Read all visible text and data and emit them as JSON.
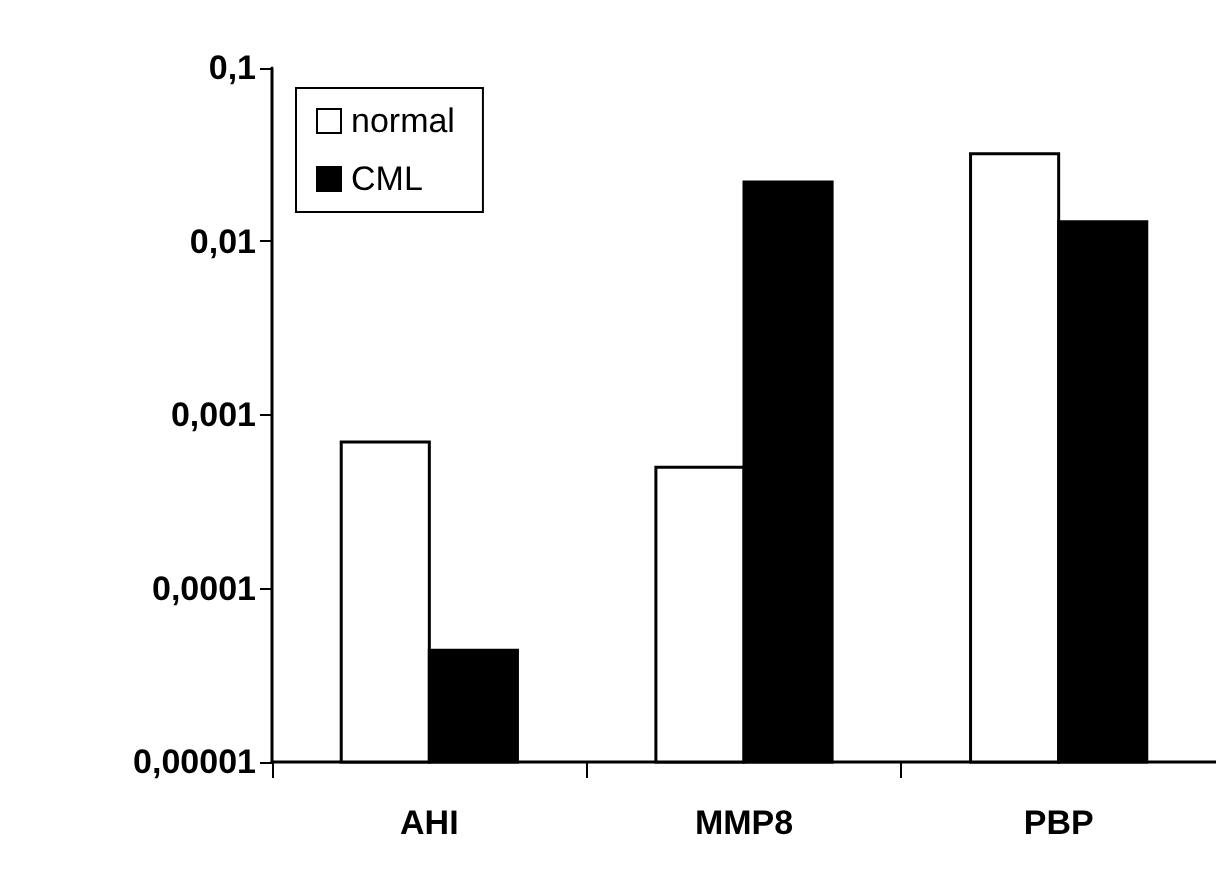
{
  "chart_data": {
    "type": "bar",
    "categories": [
      "AHI",
      "MMP8",
      "PBP"
    ],
    "series": [
      {
        "name": "normal",
        "color": "#ffffff",
        "values": [
          0.0007,
          0.0005,
          0.032
        ]
      },
      {
        "name": "CML",
        "color": "#000000",
        "values": [
          4.4e-05,
          0.022,
          0.013
        ]
      }
    ],
    "log": true,
    "ylim": [
      1e-05,
      0.1
    ],
    "yticks": [
      {
        "value": 1e-05,
        "label": "0,00001"
      },
      {
        "value": 0.0001,
        "label": "0,0001"
      },
      {
        "value": 0.001,
        "label": "0,001"
      },
      {
        "value": 0.01,
        "label": "0,01"
      },
      {
        "value": 0.1,
        "label": "0,1"
      }
    ],
    "grid": false,
    "legend": "top left"
  }
}
